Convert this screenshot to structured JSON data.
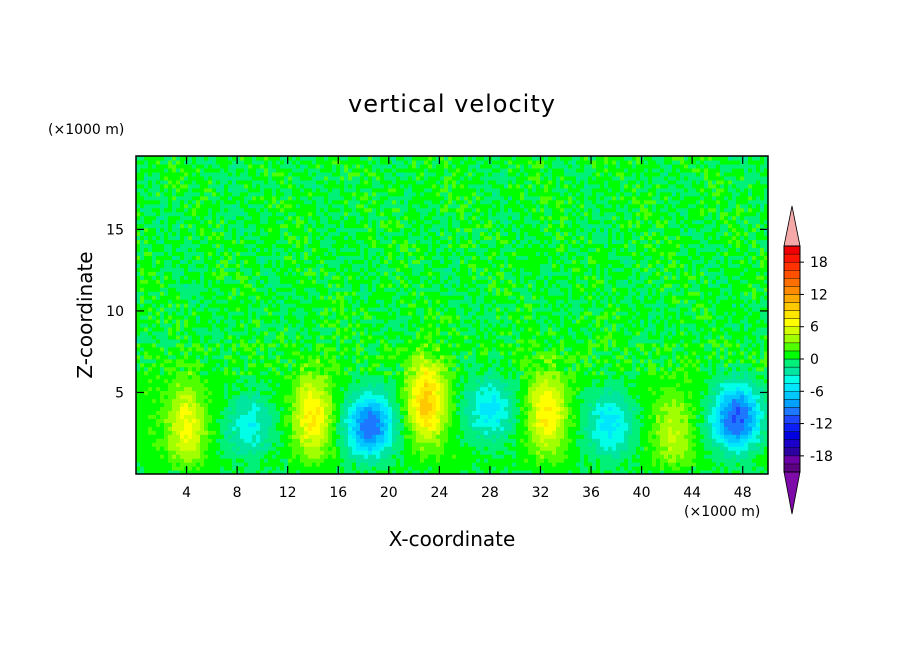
{
  "chart_data": {
    "type": "heatmap",
    "title": "vertical velocity",
    "xlabel": "X-coordinate",
    "ylabel": "Z-coordinate",
    "x_unit": "(×1000 m)",
    "y_unit": "(×1000 m)",
    "xlim": [
      0,
      50
    ],
    "ylim": [
      0,
      19.5
    ],
    "x_ticks": [
      4,
      8,
      12,
      16,
      20,
      24,
      28,
      32,
      36,
      40,
      44,
      48
    ],
    "y_ticks": [
      5,
      10,
      15
    ],
    "colorbar": {
      "levels": [
        -21,
        -19.5,
        -18,
        -16.5,
        -15,
        -13.5,
        -12,
        -10.5,
        -9,
        -7.5,
        -6,
        -4.5,
        -3,
        -1.5,
        0,
        1.5,
        3,
        4.5,
        6,
        7.5,
        9,
        10.5,
        12,
        13.5,
        15,
        16.5,
        18,
        19.5,
        21
      ],
      "colors": [
        "#5a0080",
        "#6a00a6",
        "#2d00a0",
        "#1a00c8",
        "#0000e0",
        "#0a1ef5",
        "#1e46ff",
        "#1e78ff",
        "#00a0ff",
        "#00c8ff",
        "#00e6ff",
        "#00ffe6",
        "#00e6a0",
        "#00f078",
        "#00ff00",
        "#50ff00",
        "#a0ff00",
        "#d2ff00",
        "#ffff00",
        "#ffe600",
        "#ffc800",
        "#ffaa00",
        "#ff8c00",
        "#ff6e00",
        "#ff5000",
        "#ff3200",
        "#ff1400",
        "#f00000"
      ],
      "under_color": "#7e0aa8",
      "over_color": "#f4a8a8",
      "tick_labels": [
        18,
        12,
        6,
        0,
        -6,
        -12,
        -18
      ]
    },
    "features": [
      {
        "kind": "updraft",
        "x": 4.0,
        "z": 3.0,
        "peak": 6
      },
      {
        "kind": "updraft",
        "x": 14.0,
        "z": 3.6,
        "peak": 7
      },
      {
        "kind": "updraft",
        "x": 23.0,
        "z": 4.5,
        "peak": 9
      },
      {
        "kind": "updraft",
        "x": 32.5,
        "z": 3.8,
        "peak": 7
      },
      {
        "kind": "updraft",
        "x": 42.5,
        "z": 2.5,
        "peak": 4
      },
      {
        "kind": "downdraft",
        "x": 9.0,
        "z": 3.0,
        "peak": -5
      },
      {
        "kind": "downdraft",
        "x": 18.5,
        "z": 3.0,
        "peak": -11
      },
      {
        "kind": "downdraft",
        "x": 28.0,
        "z": 4.0,
        "peak": -6
      },
      {
        "kind": "downdraft",
        "x": 37.5,
        "z": 3.0,
        "peak": -6
      },
      {
        "kind": "downdraft",
        "x": 47.5,
        "z": 3.5,
        "peak": -12
      }
    ]
  }
}
